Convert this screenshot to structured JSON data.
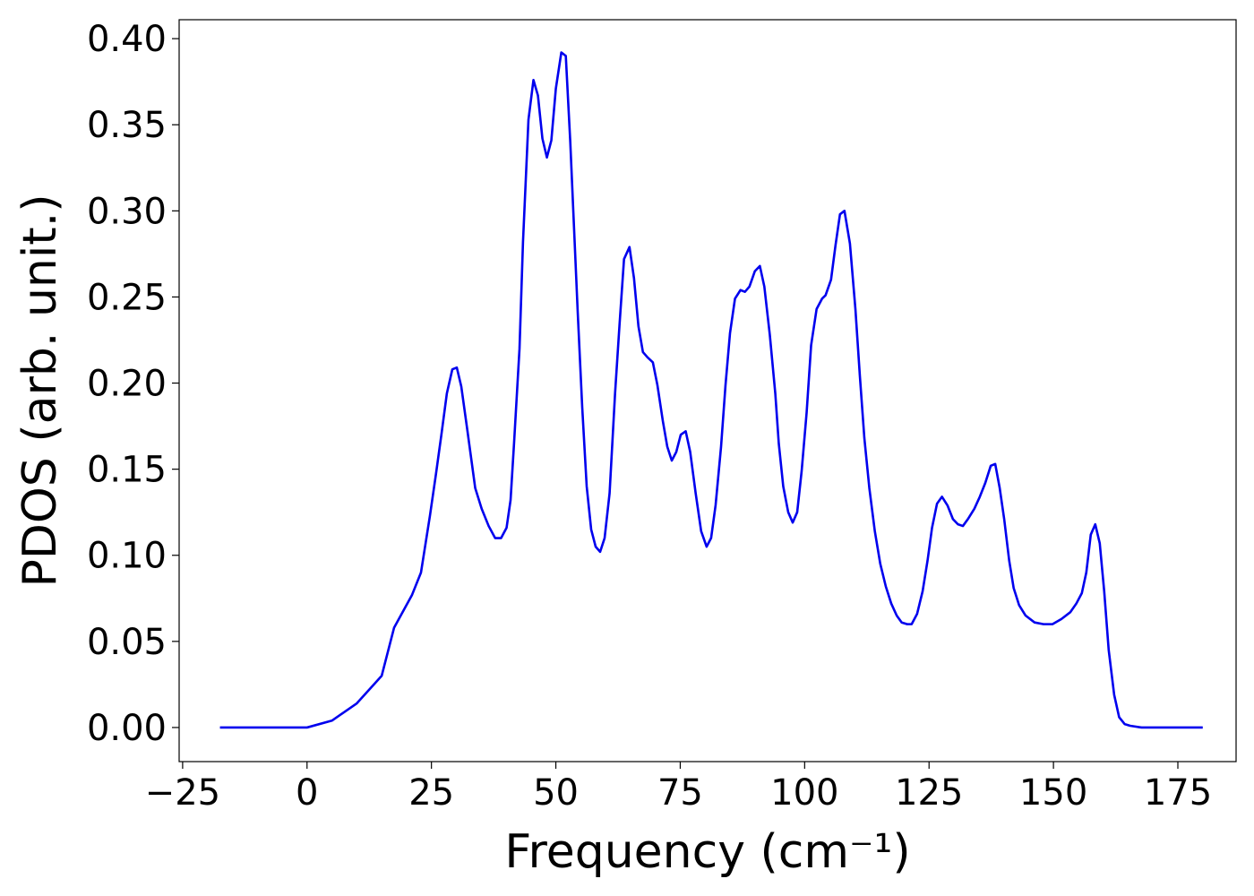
{
  "chart_data": {
    "type": "line",
    "xlabel": "Frequency (cm⁻¹)",
    "ylabel": "PDOS (arb. unit.)",
    "color": "#0000ee",
    "x": [
      -17.5,
      0,
      5,
      10,
      15,
      17.5,
      21.1,
      22.9,
      24.7,
      25.9,
      27,
      28.1,
      29.2,
      30.1,
      31,
      32.2,
      33.8,
      35.1,
      36.5,
      37.8,
      39,
      40.1,
      40.9,
      41.6,
      42.7,
      43.4,
      44.5,
      45.5,
      46.4,
      47.3,
      48.2,
      49.1,
      50,
      51.1,
      52,
      52.9,
      54.4,
      55.3,
      56.2,
      57.1,
      58,
      58.9,
      59.8,
      60.8,
      61.9,
      62.8,
      63.7,
      64.8,
      65.7,
      66.6,
      67.5,
      68.4,
      69.5,
      70.4,
      71.5,
      72.4,
      73.3,
      74.2,
      75.1,
      76.1,
      77,
      78.1,
      79.2,
      80.3,
      81.2,
      82.1,
      83.2,
      84.1,
      85,
      86,
      87.1,
      88,
      88.9,
      90,
      91,
      91.9,
      93,
      94.1,
      94.8,
      95.7,
      96.7,
      97.6,
      98.5,
      99.4,
      100.4,
      101.3,
      102.4,
      103.5,
      104.2,
      105.3,
      106.2,
      107.1,
      108,
      109.1,
      110.2,
      111.1,
      112,
      113,
      114.1,
      115.2,
      116.3,
      117.4,
      118.5,
      119.5,
      120.6,
      121.5,
      122.6,
      123.7,
      124.7,
      125.6,
      126.6,
      127.6,
      128.7,
      129.8,
      130.8,
      131.8,
      132.8,
      134.1,
      135.2,
      136.3,
      137.4,
      138.3,
      139.2,
      140.1,
      141.1,
      142,
      143.1,
      144.4,
      146.2,
      148,
      149.8,
      151.6,
      153.4,
      154.6,
      155.7,
      156.6,
      157.5,
      158.4,
      159.3,
      160.2,
      161.1,
      162.2,
      163.2,
      164.3,
      165.4,
      167.7,
      180
    ],
    "y": [
      0,
      0,
      0.004,
      0.014,
      0.03,
      0.058,
      0.077,
      0.09,
      0.123,
      0.147,
      0.17,
      0.194,
      0.208,
      0.209,
      0.198,
      0.173,
      0.139,
      0.127,
      0.117,
      0.11,
      0.11,
      0.116,
      0.132,
      0.165,
      0.22,
      0.282,
      0.353,
      0.376,
      0.367,
      0.342,
      0.331,
      0.341,
      0.371,
      0.392,
      0.39,
      0.34,
      0.241,
      0.186,
      0.14,
      0.115,
      0.105,
      0.102,
      0.11,
      0.136,
      0.194,
      0.234,
      0.272,
      0.279,
      0.261,
      0.233,
      0.218,
      0.215,
      0.212,
      0.199,
      0.178,
      0.163,
      0.155,
      0.16,
      0.17,
      0.172,
      0.16,
      0.136,
      0.114,
      0.105,
      0.11,
      0.129,
      0.163,
      0.199,
      0.229,
      0.249,
      0.254,
      0.253,
      0.256,
      0.265,
      0.268,
      0.256,
      0.228,
      0.194,
      0.165,
      0.14,
      0.125,
      0.119,
      0.125,
      0.149,
      0.183,
      0.222,
      0.243,
      0.249,
      0.251,
      0.26,
      0.28,
      0.298,
      0.3,
      0.281,
      0.243,
      0.204,
      0.168,
      0.139,
      0.114,
      0.095,
      0.082,
      0.072,
      0.065,
      0.061,
      0.06,
      0.06,
      0.066,
      0.079,
      0.097,
      0.116,
      0.13,
      0.134,
      0.129,
      0.121,
      0.118,
      0.117,
      0.121,
      0.127,
      0.134,
      0.142,
      0.152,
      0.153,
      0.139,
      0.121,
      0.097,
      0.081,
      0.071,
      0.065,
      0.061,
      0.06,
      0.06,
      0.063,
      0.067,
      0.072,
      0.078,
      0.09,
      0.112,
      0.118,
      0.107,
      0.079,
      0.045,
      0.019,
      0.006,
      0.002,
      0.001,
      0,
      0
    ],
    "xlim": [
      -25.7,
      186.7
    ],
    "ylim": [
      -0.0198,
      0.411
    ],
    "xticks": [
      {
        "value": -25,
        "label": "−25"
      },
      0,
      25,
      50,
      75,
      100,
      125,
      150,
      175
    ],
    "yticks": [
      {
        "value": 0,
        "label": "0.00"
      },
      {
        "value": 0.05,
        "label": "0.05"
      },
      {
        "value": 0.1,
        "label": "0.10"
      },
      {
        "value": 0.15,
        "label": "0.15"
      },
      {
        "value": 0.2,
        "label": "0.20"
      },
      {
        "value": 0.25,
        "label": "0.25"
      },
      {
        "value": 0.3,
        "label": "0.30"
      },
      {
        "value": 0.35,
        "label": "0.35"
      },
      {
        "value": 0.4,
        "label": "0.40"
      }
    ]
  }
}
